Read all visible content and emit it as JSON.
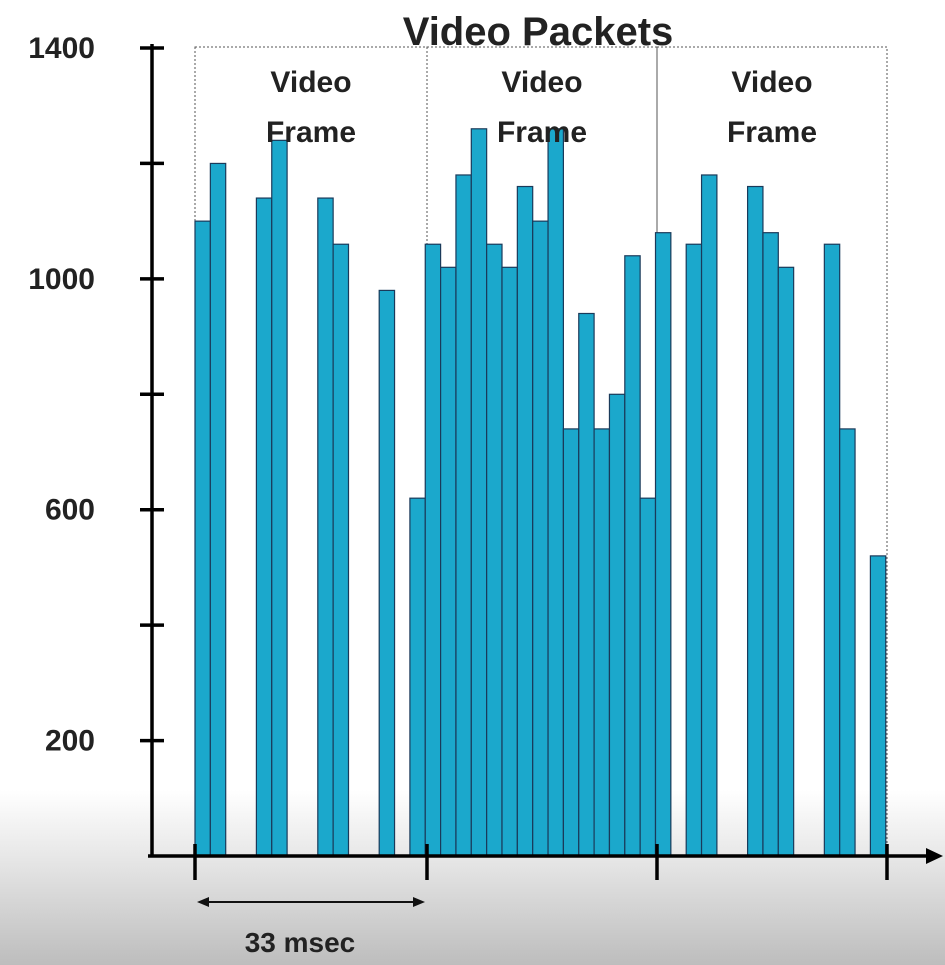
{
  "chart_data": {
    "type": "bar",
    "title": "Video Packets",
    "xlabel": "",
    "ylabel": "",
    "ylim": [
      0,
      1400
    ],
    "y_tick_labels": [
      "1400",
      "1000",
      "600",
      "200"
    ],
    "y_tick_values": [
      1400,
      1000,
      600,
      200
    ],
    "y_minor_ticks": [
      1200,
      800,
      400
    ],
    "frame_label": "Video Frame",
    "frames": [
      {
        "label_lines": [
          "Video",
          "Frame"
        ]
      },
      {
        "label_lines": [
          "Video",
          "Frame"
        ]
      },
      {
        "label_lines": [
          "Video",
          "Frame"
        ]
      }
    ],
    "interval_label": "33 msec",
    "bar_color": "#1ba8cc",
    "bar_edge_color": "#1a3a5a",
    "values": [
      1100,
      1200,
      null,
      null,
      1140,
      1240,
      null,
      null,
      1140,
      1060,
      null,
      null,
      980,
      null,
      620,
      1060,
      1020,
      1180,
      1260,
      1060,
      1020,
      1160,
      1100,
      1260,
      740,
      940,
      740,
      800,
      1040,
      620,
      1080,
      null,
      1060,
      1180,
      null,
      null,
      1160,
      1080,
      1020,
      null,
      null,
      1060,
      740,
      null,
      520
    ]
  }
}
